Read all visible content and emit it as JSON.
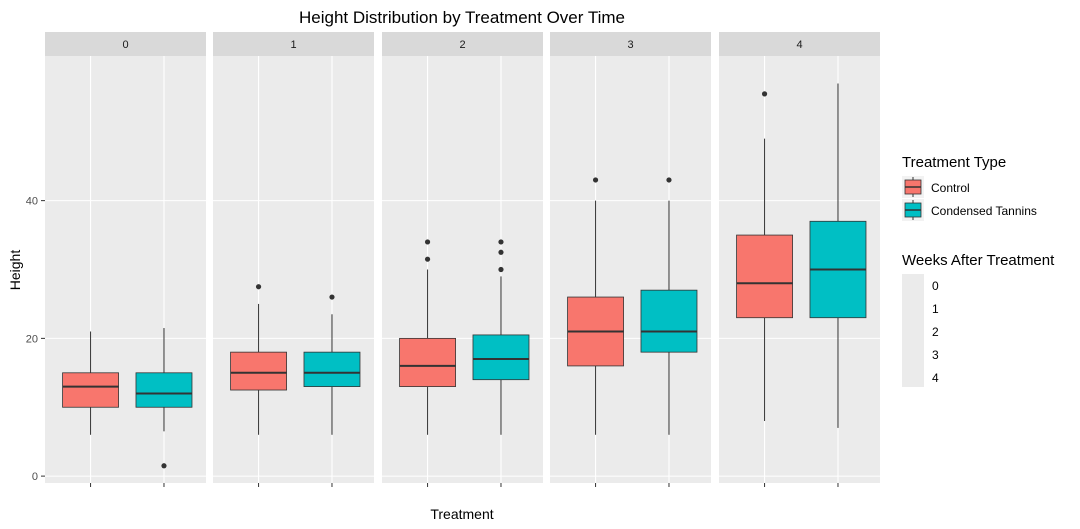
{
  "chart_data": {
    "type": "boxplot",
    "title": "Height Distribution by Treatment Over Time",
    "xlabel": "Treatment",
    "ylabel": "Height",
    "ylim": [
      -1,
      61
    ],
    "yticks": [
      0,
      20,
      40
    ],
    "facet_variable": "Weeks After Treatment",
    "facets": [
      "0",
      "1",
      "2",
      "3",
      "4"
    ],
    "categories": [
      "Control",
      "Condensed Tannins"
    ],
    "grid": true,
    "legend_position": "right",
    "series": [
      {
        "name": "Control",
        "color": "#F8766D",
        "boxes": [
          {
            "facet": "0",
            "min": 6,
            "q1": 10,
            "median": 13,
            "q3": 15,
            "max": 21,
            "outliers": []
          },
          {
            "facet": "1",
            "min": 6,
            "q1": 12.5,
            "median": 15,
            "q3": 18,
            "max": 25,
            "outliers": [
              27.5
            ]
          },
          {
            "facet": "2",
            "min": 6,
            "q1": 13,
            "median": 16,
            "q3": 20,
            "max": 30,
            "outliers": [
              31.5,
              34
            ]
          },
          {
            "facet": "3",
            "min": 6,
            "q1": 16,
            "median": 21,
            "q3": 26,
            "max": 40,
            "outliers": [
              43
            ]
          },
          {
            "facet": "4",
            "min": 8,
            "q1": 23,
            "median": 28,
            "q3": 35,
            "max": 49,
            "outliers": [
              55.5
            ]
          }
        ]
      },
      {
        "name": "Condensed Tannins",
        "color": "#00BFC4",
        "boxes": [
          {
            "facet": "0",
            "min": 6.5,
            "q1": 10,
            "median": 12,
            "q3": 15,
            "max": 21.5,
            "outliers": [
              1.5
            ]
          },
          {
            "facet": "1",
            "min": 6,
            "q1": 13,
            "median": 15,
            "q3": 18,
            "max": 23.5,
            "outliers": [
              26
            ]
          },
          {
            "facet": "2",
            "min": 6,
            "q1": 14,
            "median": 17,
            "q3": 20.5,
            "max": 29,
            "outliers": [
              30,
              32.5,
              34
            ]
          },
          {
            "facet": "3",
            "min": 6,
            "q1": 18,
            "median": 21,
            "q3": 27,
            "max": 40,
            "outliers": [
              43
            ]
          },
          {
            "facet": "4",
            "min": 7,
            "q1": 23,
            "median": 30,
            "q3": 37,
            "max": 57,
            "outliers": []
          }
        ]
      }
    ],
    "legends": [
      {
        "title": "Treatment Type",
        "entries": [
          "Control",
          "Condensed Tannins"
        ]
      },
      {
        "title": "Weeks After Treatment",
        "entries": [
          "0",
          "1",
          "2",
          "3",
          "4"
        ]
      }
    ]
  }
}
